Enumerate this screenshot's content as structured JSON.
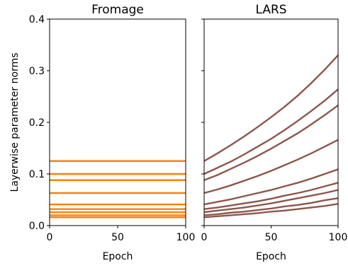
{
  "chart_data": {
    "type": "line",
    "ylabel": "Layerwise parameter norms",
    "shared_y": true,
    "ylim": [
      0,
      0.4
    ],
    "yticks": [
      "0.0",
      "0.1",
      "0.2",
      "0.3",
      "0.4"
    ],
    "panels": [
      {
        "title": "Fromage",
        "xlabel": "Epoch",
        "xlim": [
          0,
          100
        ],
        "xticks": [
          "0",
          "50",
          "100"
        ],
        "color": "#ff7f0e",
        "x": [
          0,
          100
        ],
        "series": [
          {
            "values": [
              0.125,
              0.125
            ]
          },
          {
            "values": [
              0.1,
              0.1
            ]
          },
          {
            "values": [
              0.088,
              0.088
            ]
          },
          {
            "values": [
              0.063,
              0.063
            ]
          },
          {
            "values": [
              0.041,
              0.041
            ]
          },
          {
            "values": [
              0.032,
              0.032
            ]
          },
          {
            "values": [
              0.026,
              0.026
            ]
          },
          {
            "values": [
              0.02,
              0.02
            ]
          },
          {
            "values": [
              0.016,
              0.016
            ]
          }
        ]
      },
      {
        "title": "LARS",
        "xlabel": "Epoch",
        "xlim": [
          0,
          100
        ],
        "xticks": [
          "0",
          "50",
          "100"
        ],
        "color": "#8c564b",
        "x": [
          0,
          10,
          20,
          30,
          40,
          50,
          60,
          70,
          80,
          90,
          100
        ],
        "series": [
          {
            "values": [
              0.125,
              0.14,
              0.156,
              0.173,
              0.191,
              0.21,
              0.23,
              0.252,
              0.276,
              0.302,
              0.33
            ]
          },
          {
            "values": [
              0.1,
              0.112,
              0.124,
              0.138,
              0.153,
              0.168,
              0.185,
              0.203,
              0.222,
              0.242,
              0.264
            ]
          },
          {
            "values": [
              0.088,
              0.098,
              0.11,
              0.122,
              0.135,
              0.149,
              0.164,
              0.179,
              0.196,
              0.214,
              0.233
            ]
          },
          {
            "values": [
              0.063,
              0.07,
              0.078,
              0.087,
              0.096,
              0.106,
              0.117,
              0.128,
              0.14,
              0.153,
              0.166
            ]
          },
          {
            "values": [
              0.041,
              0.046,
              0.051,
              0.057,
              0.063,
              0.069,
              0.076,
              0.083,
              0.091,
              0.1,
              0.109
            ]
          },
          {
            "values": [
              0.032,
              0.035,
              0.039,
              0.043,
              0.047,
              0.052,
              0.058,
              0.063,
              0.069,
              0.076,
              0.083
            ]
          },
          {
            "values": [
              0.026,
              0.029,
              0.032,
              0.035,
              0.039,
              0.043,
              0.048,
              0.053,
              0.058,
              0.063,
              0.069
            ]
          },
          {
            "values": [
              0.02,
              0.022,
              0.025,
              0.027,
              0.03,
              0.033,
              0.037,
              0.04,
              0.044,
              0.049,
              0.053
            ]
          },
          {
            "values": [
              0.016,
              0.018,
              0.02,
              0.022,
              0.024,
              0.027,
              0.029,
              0.032,
              0.035,
              0.038,
              0.042
            ]
          }
        ]
      }
    ]
  }
}
